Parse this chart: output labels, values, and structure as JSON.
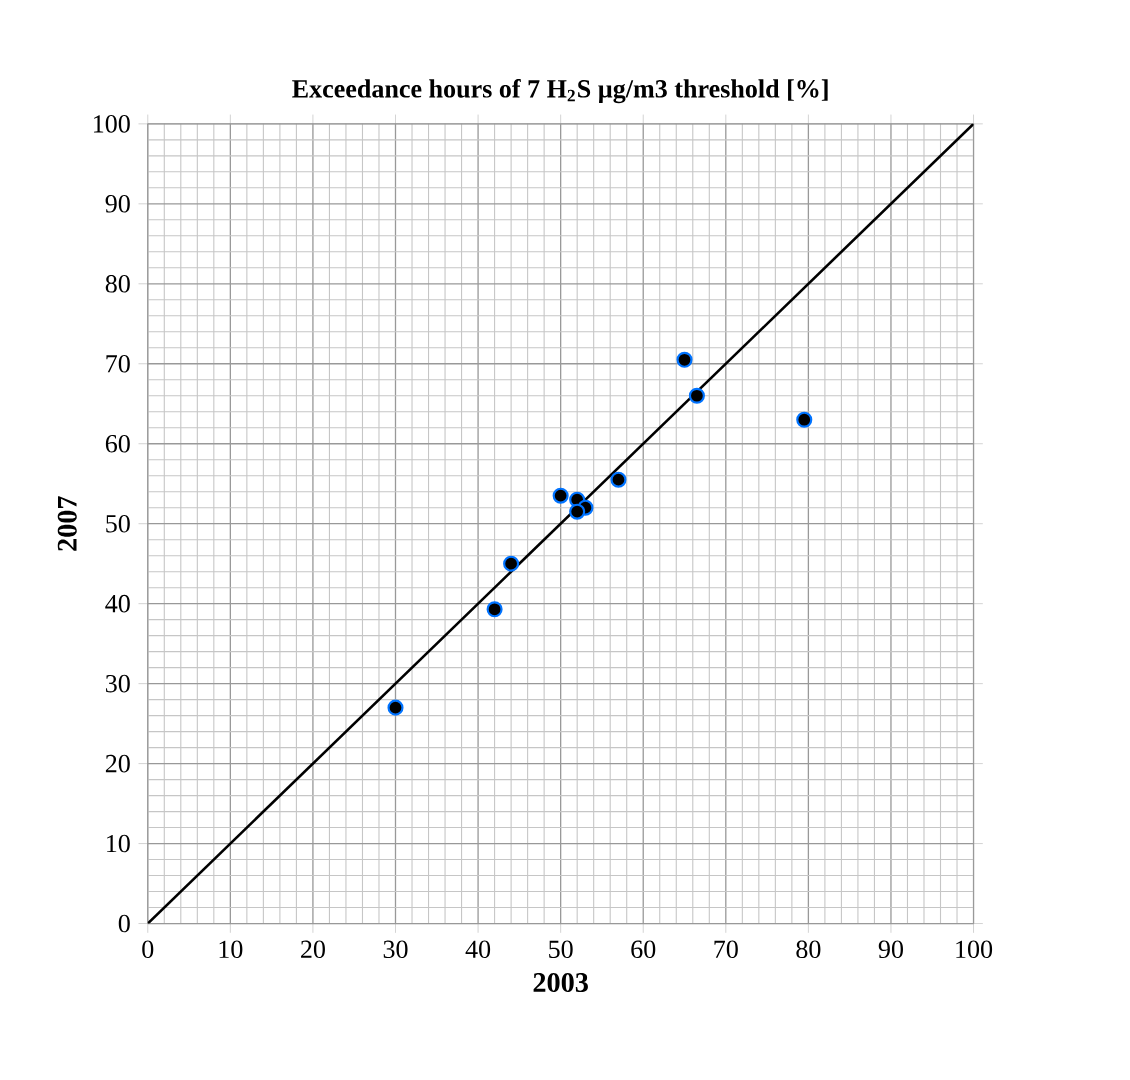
{
  "chart_data": {
    "type": "scatter",
    "title": "Exceedance hours of 7 H$_{2}$S µg/m3 threshold  [%]",
    "xlabel": "2003",
    "ylabel": "2007",
    "series": [
      {
        "color": "#000000",
        "marker": "circle",
        "x": [
          30,
          42,
          44,
          50,
          52,
          53,
          52,
          57,
          65,
          66.5,
          79.5
        ],
        "values": [
          27,
          39.3,
          45,
          53.5,
          53,
          52,
          51.5,
          55.5,
          70.5,
          66,
          63
        ]
      },
      {
        "type": "line",
        "color": "#000000",
        "marker": "none",
        "x": [
          0,
          100
        ],
        "values": [
          0,
          100
        ]
      }
    ],
    "xlim": [
      0,
      100
    ],
    "ylim": [
      0,
      100
    ],
    "xticks": [
      0,
      10,
      20,
      30,
      40,
      50,
      60,
      70,
      80,
      90,
      100
    ],
    "yticks": [
      0,
      10,
      20,
      30,
      40,
      50,
      60,
      70,
      80,
      90,
      100
    ],
    "grid": true
  }
}
